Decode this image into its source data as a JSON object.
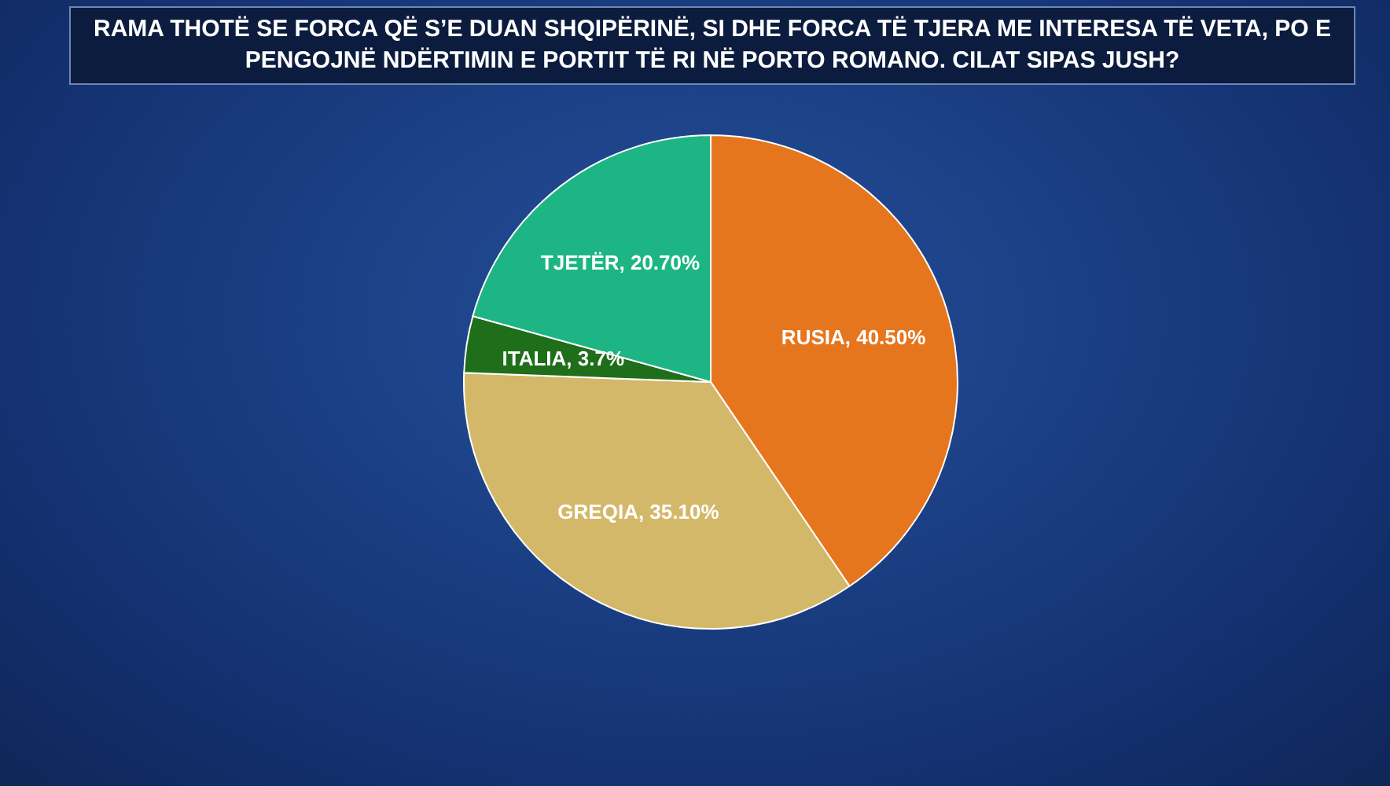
{
  "chart_data": {
    "type": "pie",
    "title": "RAMA THOTË SE FORCA QË S’E DUAN SHQIPËRINË, SI DHE FORCA TË TJERA ME INTERESA TË VETA, PO E PENGOJNË NDËRTIMIN E PORTIT TË RI NË PORTO ROMANO. CILAT SIPAS JUSH?",
    "categories": [
      "RUSIA",
      "GREQIA",
      "ITALIA",
      "TJETËR"
    ],
    "values": [
      40.5,
      35.1,
      3.7,
      20.7
    ],
    "colors": [
      "#e6761e",
      "#d4b86a",
      "#1f6e1a",
      "#1db584"
    ],
    "value_labels": [
      "40.50%",
      "35.10%",
      "3.7%",
      "20.70%"
    ],
    "legend": false
  }
}
